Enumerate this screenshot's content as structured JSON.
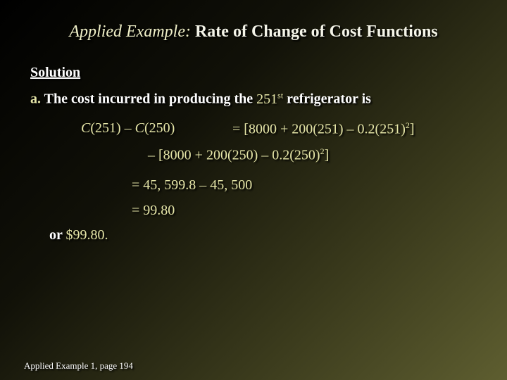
{
  "title": {
    "lead": "Applied Example:",
    "rest": "Rate of Change of Cost Functions"
  },
  "solution": {
    "heading": "Solution",
    "label": "a.",
    "text_before": "The cost incurred in producing the",
    "ordinal": "251",
    "ordinal_suffix": "st",
    "text_after": "refrigerator is"
  },
  "equation": {
    "lhs": [
      "C",
      "(251) – ",
      "C",
      "(250)"
    ],
    "line1": {
      "text": "= [8000 + 200(251) – 0.2(251)",
      "exponent": "2",
      "close": "]"
    },
    "line2": {
      "text": "– [8000 + 200(250) – 0.2(250)",
      "exponent": "2",
      "close": "]"
    },
    "line3": "= 45, 599.8 – 45, 500",
    "line4": "= 99.80"
  },
  "conclusion": {
    "lead": "or",
    "amount": "$99.80",
    "end": "."
  },
  "footer": "Applied Example 1, page 194"
}
